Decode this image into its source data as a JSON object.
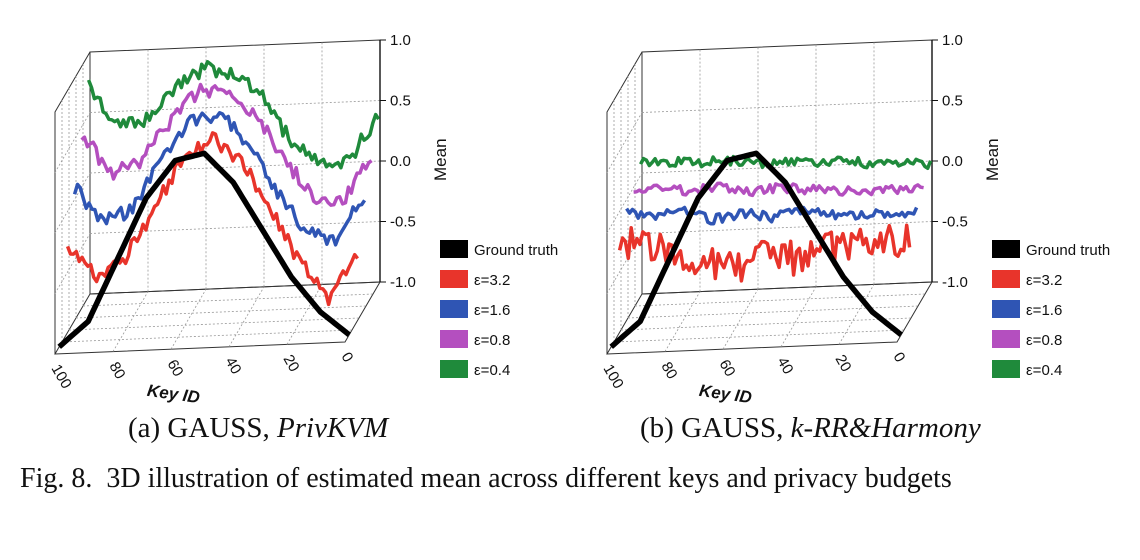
{
  "figure": {
    "caption_label": "Fig. 8.",
    "caption_text": "3D illustration of estimated mean across different keys and privacy budgets"
  },
  "legend": [
    {
      "label": "Ground truth",
      "color": "#000000"
    },
    {
      "label": "ε=3.2",
      "color": "#e8342b"
    },
    {
      "label": "ε=1.6",
      "color": "#2f55b4"
    },
    {
      "label": "ε=0.8",
      "color": "#b44fbf"
    },
    {
      "label": "ε=0.4",
      "color": "#1f8a3b"
    }
  ],
  "chart_data": [
    {
      "type": "line",
      "subcaption_prefix": "(a) GAUSS, ",
      "subcaption_method": "PrivKVM",
      "xlabel": "Key ID",
      "ylabel": "Mean",
      "x_ticks": [
        100,
        80,
        60,
        40,
        20,
        0
      ],
      "y_ticks": [
        "1.0",
        "0.5",
        "0.0",
        "-0.5",
        "-1.0"
      ],
      "ylim": [
        -1.0,
        1.0
      ],
      "x": [
        100,
        90,
        80,
        70,
        60,
        50,
        40,
        30,
        20,
        10,
        0
      ],
      "series": [
        {
          "name": "Ground truth",
          "values": [
            -1.0,
            -0.8,
            -0.3,
            0.2,
            0.5,
            0.55,
            0.3,
            -0.1,
            -0.5,
            -0.8,
            -1.0
          ]
        },
        {
          "name": "ε=3.2",
          "values": [
            -0.3,
            -0.55,
            -0.4,
            0.0,
            0.4,
            0.55,
            0.35,
            -0.05,
            -0.5,
            -0.8,
            -0.45
          ]
        },
        {
          "name": "ε=1.6",
          "values": [
            0.1,
            -0.2,
            -0.1,
            0.3,
            0.6,
            0.65,
            0.4,
            0.0,
            -0.35,
            -0.45,
            -0.05
          ]
        },
        {
          "name": "ε=0.8",
          "values": [
            0.45,
            0.1,
            0.2,
            0.5,
            0.75,
            0.75,
            0.55,
            0.15,
            -0.15,
            -0.2,
            0.15
          ]
        },
        {
          "name": "ε=0.4",
          "values": [
            0.75,
            0.4,
            0.45,
            0.7,
            0.85,
            0.8,
            0.6,
            0.2,
            0.0,
            0.05,
            0.4
          ]
        }
      ]
    },
    {
      "type": "line",
      "subcaption_prefix": "(b) GAUSS, ",
      "subcaption_method": "k-RR&Harmony",
      "xlabel": "Key ID",
      "ylabel": "Mean",
      "x_ticks": [
        100,
        80,
        60,
        40,
        20,
        0
      ],
      "y_ticks": [
        "1.0",
        "0.5",
        "0.0",
        "-0.5",
        "-1.0"
      ],
      "ylim": [
        -1.0,
        1.0
      ],
      "x": [
        100,
        90,
        80,
        70,
        60,
        50,
        40,
        30,
        20,
        10,
        0
      ],
      "series": [
        {
          "name": "Ground truth",
          "values": [
            -1.0,
            -0.8,
            -0.3,
            0.2,
            0.5,
            0.55,
            0.3,
            -0.1,
            -0.5,
            -0.8,
            -1.0
          ]
        },
        {
          "name": "ε=3.2",
          "values": [
            -0.25,
            -0.3,
            -0.35,
            -0.45,
            -0.5,
            -0.4,
            -0.45,
            -0.35,
            -0.4,
            -0.3,
            -0.35
          ]
        },
        {
          "name": "ε=1.6",
          "values": [
            -0.1,
            -0.15,
            -0.1,
            -0.2,
            -0.15,
            -0.2,
            -0.15,
            -0.2,
            -0.2,
            -0.22,
            -0.2
          ]
        },
        {
          "name": "ε=0.8",
          "values": [
            0.0,
            -0.02,
            -0.05,
            -0.03,
            -0.08,
            -0.05,
            -0.08,
            -0.1,
            -0.12,
            -0.1,
            -0.12
          ]
        },
        {
          "name": "ε=0.4",
          "values": [
            0.12,
            0.1,
            0.08,
            0.1,
            0.05,
            0.07,
            0.03,
            0.05,
            0.02,
            0.0,
            0.0
          ]
        }
      ]
    }
  ]
}
